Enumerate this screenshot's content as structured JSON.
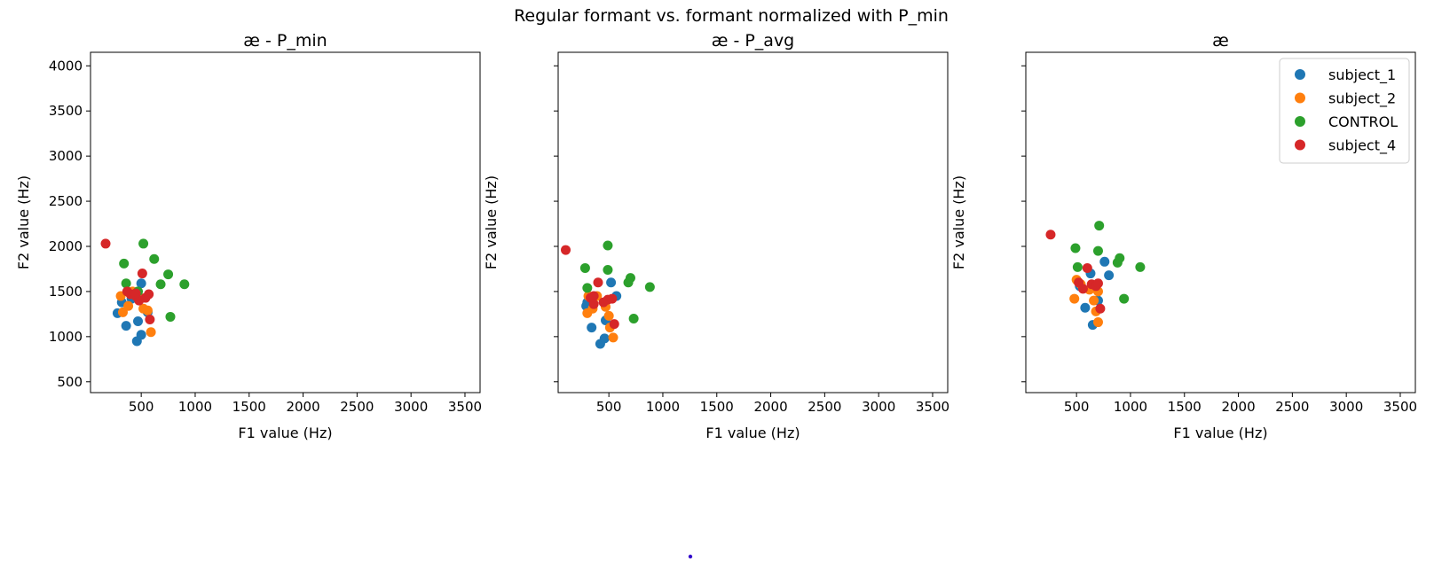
{
  "figure": {
    "suptitle": "Regular formant vs. formant normalized with P_min",
    "series_colors": {
      "subject_1": "#1f77b4",
      "subject_2": "#ff7f0e",
      "CONTROL": "#2ca02c",
      "subject_4": "#d62728"
    }
  },
  "chart_data": [
    {
      "type": "scatter",
      "title": "æ - P_min",
      "xlabel": "F1 value (Hz)",
      "ylabel": "F2 value (Hz)",
      "xlim": [
        30,
        3640
      ],
      "ylim": [
        380,
        4150
      ],
      "xticks": [
        500,
        1000,
        1500,
        2000,
        2500,
        3000,
        3500
      ],
      "yticks": [
        500,
        1000,
        1500,
        2000,
        2500,
        3000,
        3500,
        4000
      ],
      "show_yticklabels": true,
      "grid": false,
      "legend": null,
      "series": [
        {
          "name": "subject_1",
          "points": [
            [
              280,
              1260
            ],
            [
              320,
              1380
            ],
            [
              360,
              1120
            ],
            [
              470,
              1170
            ],
            [
              460,
              950
            ],
            [
              500,
              1020
            ],
            [
              500,
              1590
            ],
            [
              560,
              1270
            ],
            [
              410,
              1420
            ]
          ]
        },
        {
          "name": "subject_2",
          "points": [
            [
              310,
              1450
            ],
            [
              330,
              1270
            ],
            [
              380,
              1340
            ],
            [
              420,
              1500
            ],
            [
              480,
              1440
            ],
            [
              520,
              1310
            ],
            [
              560,
              1290
            ],
            [
              590,
              1050
            ]
          ]
        },
        {
          "name": "CONTROL",
          "points": [
            [
              340,
              1810
            ],
            [
              360,
              1590
            ],
            [
              470,
              1500
            ],
            [
              520,
              2030
            ],
            [
              620,
              1860
            ],
            [
              680,
              1580
            ],
            [
              750,
              1690
            ],
            [
              770,
              1220
            ],
            [
              900,
              1580
            ]
          ]
        },
        {
          "name": "subject_4",
          "points": [
            [
              170,
              2030
            ],
            [
              370,
              1500
            ],
            [
              400,
              1470
            ],
            [
              450,
              1450
            ],
            [
              480,
              1400
            ],
            [
              510,
              1700
            ],
            [
              540,
              1430
            ],
            [
              570,
              1470
            ],
            [
              580,
              1190
            ],
            [
              450,
              1480
            ]
          ]
        }
      ]
    },
    {
      "type": "scatter",
      "title": "æ - P_avg",
      "xlabel": "F1 value (Hz)",
      "ylabel": "F2 value (Hz)",
      "xlim": [
        30,
        3640
      ],
      "ylim": [
        380,
        4150
      ],
      "xticks": [
        500,
        1000,
        1500,
        2000,
        2500,
        3000,
        3500
      ],
      "yticks": [
        500,
        1000,
        1500,
        2000,
        2500,
        3000,
        3500,
        4000
      ],
      "show_yticklabels": false,
      "grid": false,
      "legend": null,
      "series": [
        {
          "name": "subject_1",
          "points": [
            [
              290,
              1340
            ],
            [
              340,
              1100
            ],
            [
              420,
              920
            ],
            [
              460,
              980
            ],
            [
              470,
              1180
            ],
            [
              520,
              1600
            ],
            [
              570,
              1450
            ],
            [
              300,
              1380
            ]
          ]
        },
        {
          "name": "subject_2",
          "points": [
            [
              300,
              1260
            ],
            [
              310,
              1450
            ],
            [
              350,
              1310
            ],
            [
              390,
              1450
            ],
            [
              470,
              1330
            ],
            [
              500,
              1230
            ],
            [
              510,
              1100
            ],
            [
              540,
              990
            ]
          ]
        },
        {
          "name": "CONTROL",
          "points": [
            [
              280,
              1760
            ],
            [
              300,
              1540
            ],
            [
              490,
              2010
            ],
            [
              490,
              1740
            ],
            [
              680,
              1600
            ],
            [
              700,
              1650
            ],
            [
              730,
              1200
            ],
            [
              880,
              1550
            ]
          ]
        },
        {
          "name": "subject_4",
          "points": [
            [
              100,
              1960
            ],
            [
              330,
              1430
            ],
            [
              360,
              1450
            ],
            [
              400,
              1600
            ],
            [
              450,
              1380
            ],
            [
              490,
              1410
            ],
            [
              530,
              1420
            ],
            [
              550,
              1140
            ],
            [
              360,
              1360
            ]
          ]
        }
      ]
    },
    {
      "type": "scatter",
      "title": "æ",
      "xlabel": "F1 value (Hz)",
      "ylabel": "F2 value (Hz)",
      "xlim": [
        30,
        3640
      ],
      "ylim": [
        380,
        4150
      ],
      "xticks": [
        500,
        1000,
        1500,
        2000,
        2500,
        3000,
        3500
      ],
      "yticks": [
        500,
        1000,
        1500,
        2000,
        2500,
        3000,
        3500,
        4000
      ],
      "show_yticklabels": false,
      "grid": false,
      "legend": {
        "placement": "top-right",
        "entries": [
          "subject_1",
          "subject_2",
          "CONTROL",
          "subject_4"
        ]
      },
      "series": [
        {
          "name": "subject_1",
          "points": [
            [
              530,
              1560
            ],
            [
              580,
              1320
            ],
            [
              630,
              1700
            ],
            [
              650,
              1130
            ],
            [
              700,
              1400
            ],
            [
              760,
              1830
            ],
            [
              800,
              1680
            ]
          ]
        },
        {
          "name": "subject_2",
          "points": [
            [
              480,
              1420
            ],
            [
              500,
              1630
            ],
            [
              540,
              1580
            ],
            [
              620,
              1520
            ],
            [
              660,
              1400
            ],
            [
              680,
              1280
            ],
            [
              700,
              1160
            ],
            [
              700,
              1500
            ]
          ]
        },
        {
          "name": "CONTROL",
          "points": [
            [
              490,
              1980
            ],
            [
              510,
              1770
            ],
            [
              700,
              1950
            ],
            [
              710,
              2230
            ],
            [
              880,
              1820
            ],
            [
              900,
              1870
            ],
            [
              940,
              1420
            ],
            [
              1090,
              1770
            ]
          ]
        },
        {
          "name": "subject_4",
          "points": [
            [
              260,
              2130
            ],
            [
              520,
              1600
            ],
            [
              560,
              1530
            ],
            [
              600,
              1760
            ],
            [
              640,
              1580
            ],
            [
              680,
              1560
            ],
            [
              700,
              1590
            ],
            [
              720,
              1310
            ]
          ]
        }
      ]
    }
  ]
}
